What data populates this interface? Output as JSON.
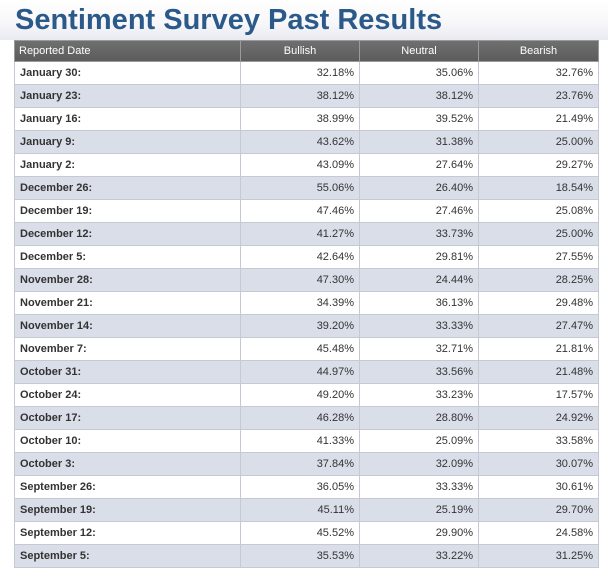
{
  "page": {
    "title": "Sentiment Survey Past Results"
  },
  "table": {
    "headers": {
      "date": "Reported Date",
      "bullish": "Bullish",
      "neutral": "Neutral",
      "bearish": "Bearish"
    },
    "rows": [
      {
        "date": "January 30:",
        "bullish": "32.18%",
        "neutral": "35.06%",
        "bearish": "32.76%"
      },
      {
        "date": "January 23:",
        "bullish": "38.12%",
        "neutral": "38.12%",
        "bearish": "23.76%"
      },
      {
        "date": "January 16:",
        "bullish": "38.99%",
        "neutral": "39.52%",
        "bearish": "21.49%"
      },
      {
        "date": "January 9:",
        "bullish": "43.62%",
        "neutral": "31.38%",
        "bearish": "25.00%"
      },
      {
        "date": "January 2:",
        "bullish": "43.09%",
        "neutral": "27.64%",
        "bearish": "29.27%"
      },
      {
        "date": "December 26:",
        "bullish": "55.06%",
        "neutral": "26.40%",
        "bearish": "18.54%"
      },
      {
        "date": "December 19:",
        "bullish": "47.46%",
        "neutral": "27.46%",
        "bearish": "25.08%"
      },
      {
        "date": "December 12:",
        "bullish": "41.27%",
        "neutral": "33.73%",
        "bearish": "25.00%"
      },
      {
        "date": "December 5:",
        "bullish": "42.64%",
        "neutral": "29.81%",
        "bearish": "27.55%"
      },
      {
        "date": "November 28:",
        "bullish": "47.30%",
        "neutral": "24.44%",
        "bearish": "28.25%"
      },
      {
        "date": "November 21:",
        "bullish": "34.39%",
        "neutral": "36.13%",
        "bearish": "29.48%"
      },
      {
        "date": "November 14:",
        "bullish": "39.20%",
        "neutral": "33.33%",
        "bearish": "27.47%"
      },
      {
        "date": "November 7:",
        "bullish": "45.48%",
        "neutral": "32.71%",
        "bearish": "21.81%"
      },
      {
        "date": "October 31:",
        "bullish": "44.97%",
        "neutral": "33.56%",
        "bearish": "21.48%"
      },
      {
        "date": "October 24:",
        "bullish": "49.20%",
        "neutral": "33.23%",
        "bearish": "17.57%"
      },
      {
        "date": "October 17:",
        "bullish": "46.28%",
        "neutral": "28.80%",
        "bearish": "24.92%"
      },
      {
        "date": "October 10:",
        "bullish": "41.33%",
        "neutral": "25.09%",
        "bearish": "33.58%"
      },
      {
        "date": "October 3:",
        "bullish": "37.84%",
        "neutral": "32.09%",
        "bearish": "30.07%"
      },
      {
        "date": "September 26:",
        "bullish": "36.05%",
        "neutral": "33.33%",
        "bearish": "30.61%"
      },
      {
        "date": "September 19:",
        "bullish": "45.11%",
        "neutral": "25.19%",
        "bearish": "29.70%"
      },
      {
        "date": "September 12:",
        "bullish": "45.52%",
        "neutral": "29.90%",
        "bearish": "24.58%"
      },
      {
        "date": "September 5:",
        "bullish": "35.53%",
        "neutral": "33.22%",
        "bearish": "31.25%"
      }
    ]
  },
  "colors": {
    "title": "#2b5a8a",
    "header_bg": "#636363",
    "row_alt_bg": "#d9dee9",
    "row_bg": "#ffffff"
  }
}
